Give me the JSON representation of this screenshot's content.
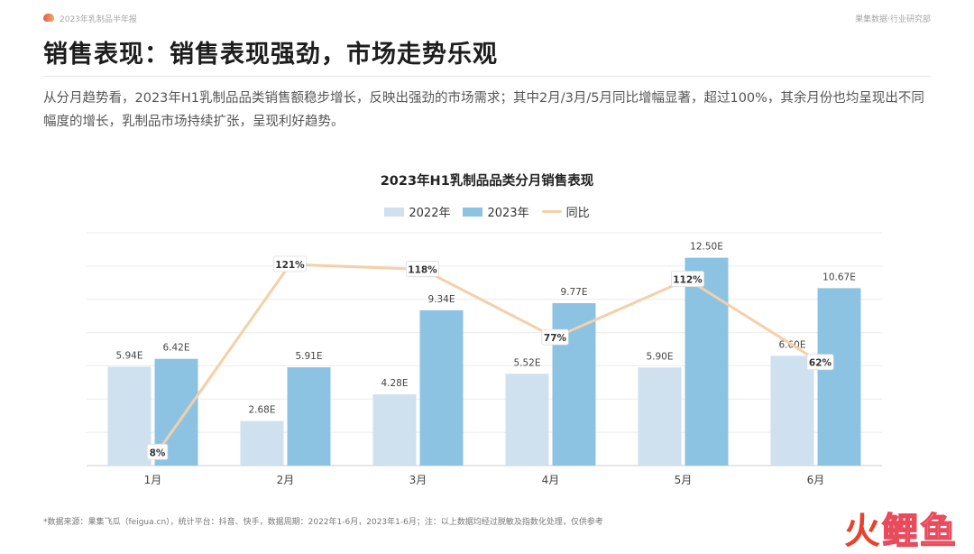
{
  "header": {
    "report_tag": "2023年乳制品半年报",
    "brand_dept": "果集数据·行业研究部"
  },
  "page_title": "销售表现：销售表现强劲，市场走势乐观",
  "summary": "从分月趋势看，2023年H1乳制品品类销售额稳步增长，反映出强劲的市场需求；其中2月/3月/5月同比增幅显著，超过100%，其余月份也均呈现出不同幅度的增长，乳制品市场持续扩张，呈现利好趋势。",
  "footnote": "*数据来源：果集飞瓜（feigua.cn），统计平台：抖音、快手，数据周期：2022年1-6月，2023年1-6月；注：以上数据均经过脱敏及指数化处理，仅供参考",
  "watermark": {
    "part1": "火",
    "part2": "鲤鱼"
  },
  "colors": {
    "series_2022": "#cfe0ee",
    "series_2023": "#8cc3e3",
    "series_yoy": "#f5cfa7",
    "accent_title": "#1d1d1d"
  },
  "chart_data": {
    "type": "bar",
    "title": "2023年H1乳制品品类分月销售表现",
    "categories": [
      "1月",
      "2月",
      "3月",
      "4月",
      "5月",
      "6月"
    ],
    "series": [
      {
        "name": "2022年",
        "values": [
          5.94,
          2.68,
          4.28,
          5.52,
          5.9,
          6.6
        ],
        "labels": [
          "5.94E",
          "2.68E",
          "4.28E",
          "5.52E",
          "5.90E",
          "6.60E"
        ]
      },
      {
        "name": "2023年",
        "values": [
          6.42,
          5.91,
          9.34,
          9.77,
          12.5,
          10.67
        ],
        "labels": [
          "6.42E",
          "5.91E",
          "9.34E",
          "9.77E",
          "12.50E",
          "10.67E"
        ]
      }
    ],
    "line_series": {
      "name": "同比",
      "type": "line",
      "values": [
        8,
        121,
        118,
        77,
        112,
        62
      ],
      "labels": [
        "8%",
        "121%",
        "118%",
        "77%",
        "112%",
        "62%"
      ]
    },
    "ylim_bars": [
      0,
      14
    ],
    "ylim_line": [
      0,
      140
    ],
    "grid": true,
    "legend_position": "top-center"
  }
}
